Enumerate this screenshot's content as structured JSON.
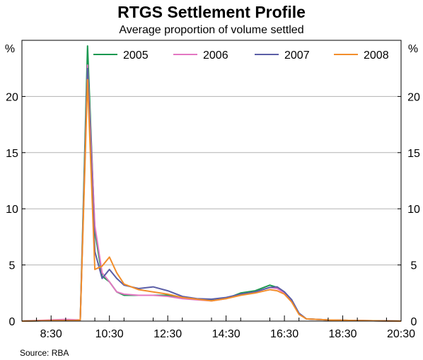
{
  "chart_data": {
    "type": "line",
    "title": "RTGS Settlement Profile",
    "subtitle": "Average proportion of volume settled",
    "ylabel_left": "%",
    "ylabel_right": "%",
    "xlabel": "",
    "source": "Source: RBA",
    "ylim": [
      0,
      25
    ],
    "yticks": [
      0,
      5,
      10,
      15,
      20
    ],
    "xlim": [
      7.5,
      20.5
    ],
    "xticks": [
      8.5,
      10.5,
      12.5,
      14.5,
      16.5,
      18.5,
      20.5
    ],
    "xtick_labels": [
      "8:30",
      "10:30",
      "12:30",
      "14:30",
      "16:30",
      "18:30",
      "20:30"
    ],
    "grid": true,
    "legend_position": "top",
    "series": [
      {
        "name": "2005",
        "color": "#1a9850",
        "points": [
          [
            7.5,
            0
          ],
          [
            8.5,
            0.05
          ],
          [
            9.3,
            0.05
          ],
          [
            9.5,
            0.1
          ],
          [
            9.75,
            24.5
          ],
          [
            10,
            8
          ],
          [
            10.25,
            4
          ],
          [
            10.5,
            3.5
          ],
          [
            10.75,
            2.6
          ],
          [
            11,
            2.3
          ],
          [
            11.5,
            2.3
          ],
          [
            12,
            2.3
          ],
          [
            12.5,
            2.3
          ],
          [
            13,
            2.1
          ],
          [
            13.5,
            1.95
          ],
          [
            14,
            1.9
          ],
          [
            14.5,
            2
          ],
          [
            15,
            2.5
          ],
          [
            15.5,
            2.7
          ],
          [
            16,
            3.2
          ],
          [
            16.25,
            3
          ],
          [
            16.5,
            2.6
          ],
          [
            16.75,
            1.8
          ],
          [
            17,
            0.7
          ],
          [
            17.25,
            0.2
          ],
          [
            18,
            0.1
          ],
          [
            19,
            0.05
          ],
          [
            20.5,
            0
          ]
        ]
      },
      {
        "name": "2006",
        "color": "#e377c2",
        "points": [
          [
            7.5,
            0
          ],
          [
            8.5,
            0.1
          ],
          [
            9,
            0.15
          ],
          [
            9.5,
            0.1
          ],
          [
            9.75,
            22.8
          ],
          [
            10,
            8.5
          ],
          [
            10.25,
            4.3
          ],
          [
            10.5,
            3.5
          ],
          [
            10.75,
            2.6
          ],
          [
            11,
            2.4
          ],
          [
            11.5,
            2.3
          ],
          [
            12,
            2.3
          ],
          [
            12.5,
            2.2
          ],
          [
            13,
            2
          ],
          [
            13.5,
            1.9
          ],
          [
            14,
            1.8
          ],
          [
            14.5,
            2
          ],
          [
            15,
            2.4
          ],
          [
            15.5,
            2.6
          ],
          [
            16,
            3
          ],
          [
            16.25,
            2.9
          ],
          [
            16.5,
            2.5
          ],
          [
            16.75,
            1.7
          ],
          [
            17,
            0.7
          ],
          [
            17.25,
            0.2
          ],
          [
            18,
            0.1
          ],
          [
            19,
            0.05
          ],
          [
            20.5,
            0
          ]
        ]
      },
      {
        "name": "2007",
        "color": "#5b5ea6",
        "points": [
          [
            7.5,
            0
          ],
          [
            8.5,
            0.05
          ],
          [
            9.3,
            0.05
          ],
          [
            9.5,
            0.1
          ],
          [
            9.75,
            22.5
          ],
          [
            10,
            6.2
          ],
          [
            10.25,
            3.8
          ],
          [
            10.5,
            4.6
          ],
          [
            10.75,
            3.8
          ],
          [
            11,
            3.2
          ],
          [
            11.5,
            2.9
          ],
          [
            12,
            3.05
          ],
          [
            12.5,
            2.7
          ],
          [
            13,
            2.2
          ],
          [
            13.5,
            2
          ],
          [
            14,
            1.95
          ],
          [
            14.5,
            2.1
          ],
          [
            15,
            2.4
          ],
          [
            15.5,
            2.6
          ],
          [
            16,
            3
          ],
          [
            16.25,
            3.05
          ],
          [
            16.5,
            2.6
          ],
          [
            16.75,
            1.9
          ],
          [
            17,
            0.7
          ],
          [
            17.25,
            0.2
          ],
          [
            18,
            0.1
          ],
          [
            19,
            0.05
          ],
          [
            20.5,
            0
          ]
        ]
      },
      {
        "name": "2008",
        "color": "#f28e2b",
        "points": [
          [
            7.5,
            0
          ],
          [
            8.5,
            0.05
          ],
          [
            9.3,
            0.05
          ],
          [
            9.5,
            0.1
          ],
          [
            9.75,
            21.5
          ],
          [
            10,
            4.6
          ],
          [
            10.25,
            4.9
          ],
          [
            10.5,
            5.7
          ],
          [
            10.75,
            4.3
          ],
          [
            11,
            3.3
          ],
          [
            11.5,
            2.8
          ],
          [
            12,
            2.6
          ],
          [
            12.5,
            2.4
          ],
          [
            13,
            2.1
          ],
          [
            13.5,
            1.95
          ],
          [
            14,
            1.8
          ],
          [
            14.5,
            2
          ],
          [
            15,
            2.3
          ],
          [
            15.5,
            2.5
          ],
          [
            16,
            2.8
          ],
          [
            16.25,
            2.7
          ],
          [
            16.5,
            2.4
          ],
          [
            16.75,
            1.7
          ],
          [
            17,
            0.6
          ],
          [
            17.25,
            0.2
          ],
          [
            18,
            0.1
          ],
          [
            19,
            0.05
          ],
          [
            20.5,
            0
          ]
        ]
      }
    ]
  }
}
